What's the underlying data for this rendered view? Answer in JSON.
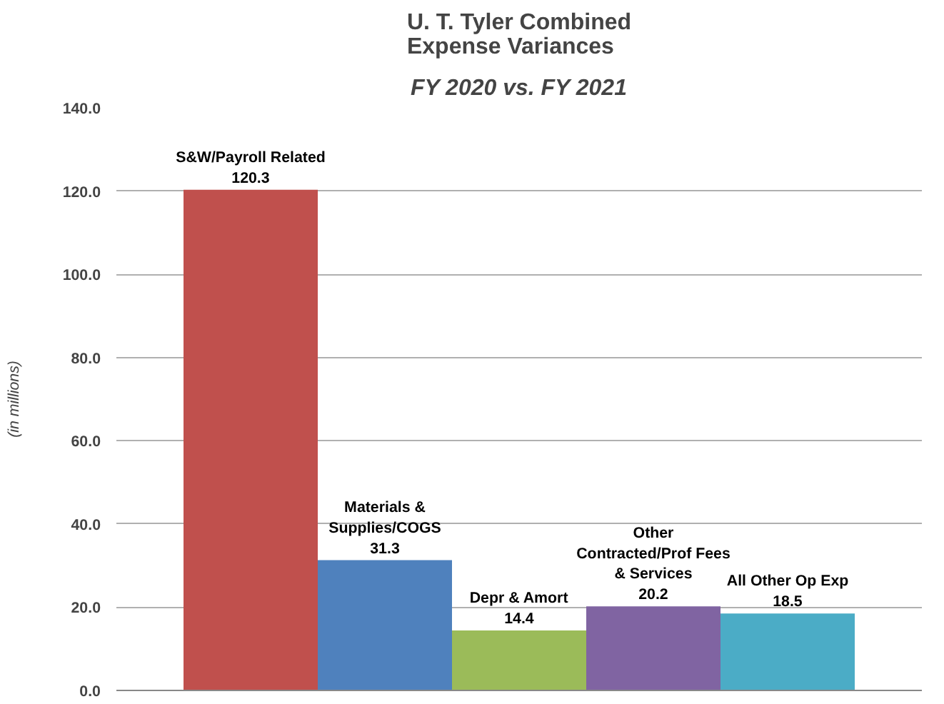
{
  "chart_data": {
    "type": "bar",
    "title": "U. T. Tyler Combined Expense Variances",
    "subtitle": "FY 2020 vs. FY 2021",
    "ylabel": "(in millions)",
    "categories": [
      "S&W/Payroll Related",
      "Materials & Supplies/COGS",
      "Depr & Amort",
      "Other Contracted/Prof Fees & Services",
      "All Other Op Exp"
    ],
    "values": [
      120.3,
      31.3,
      14.4,
      20.2,
      18.5
    ],
    "colors": [
      "#c0504d",
      "#4f81bd",
      "#9bbb59",
      "#8064a2",
      "#4bacc6"
    ],
    "ylim": [
      0,
      140
    ],
    "yticks": [
      {
        "value": 0,
        "label": "0.0"
      },
      {
        "value": 20,
        "label": "20.0"
      },
      {
        "value": 40,
        "label": "40.0"
      },
      {
        "value": 60,
        "label": "60.0"
      },
      {
        "value": 80,
        "label": "80.0"
      },
      {
        "value": 100,
        "label": "100.0"
      },
      {
        "value": 120,
        "label": "120.0"
      },
      {
        "value": 140,
        "label": "140.0"
      }
    ],
    "grid": "y",
    "data_labels": true,
    "tick_labels": "y"
  }
}
